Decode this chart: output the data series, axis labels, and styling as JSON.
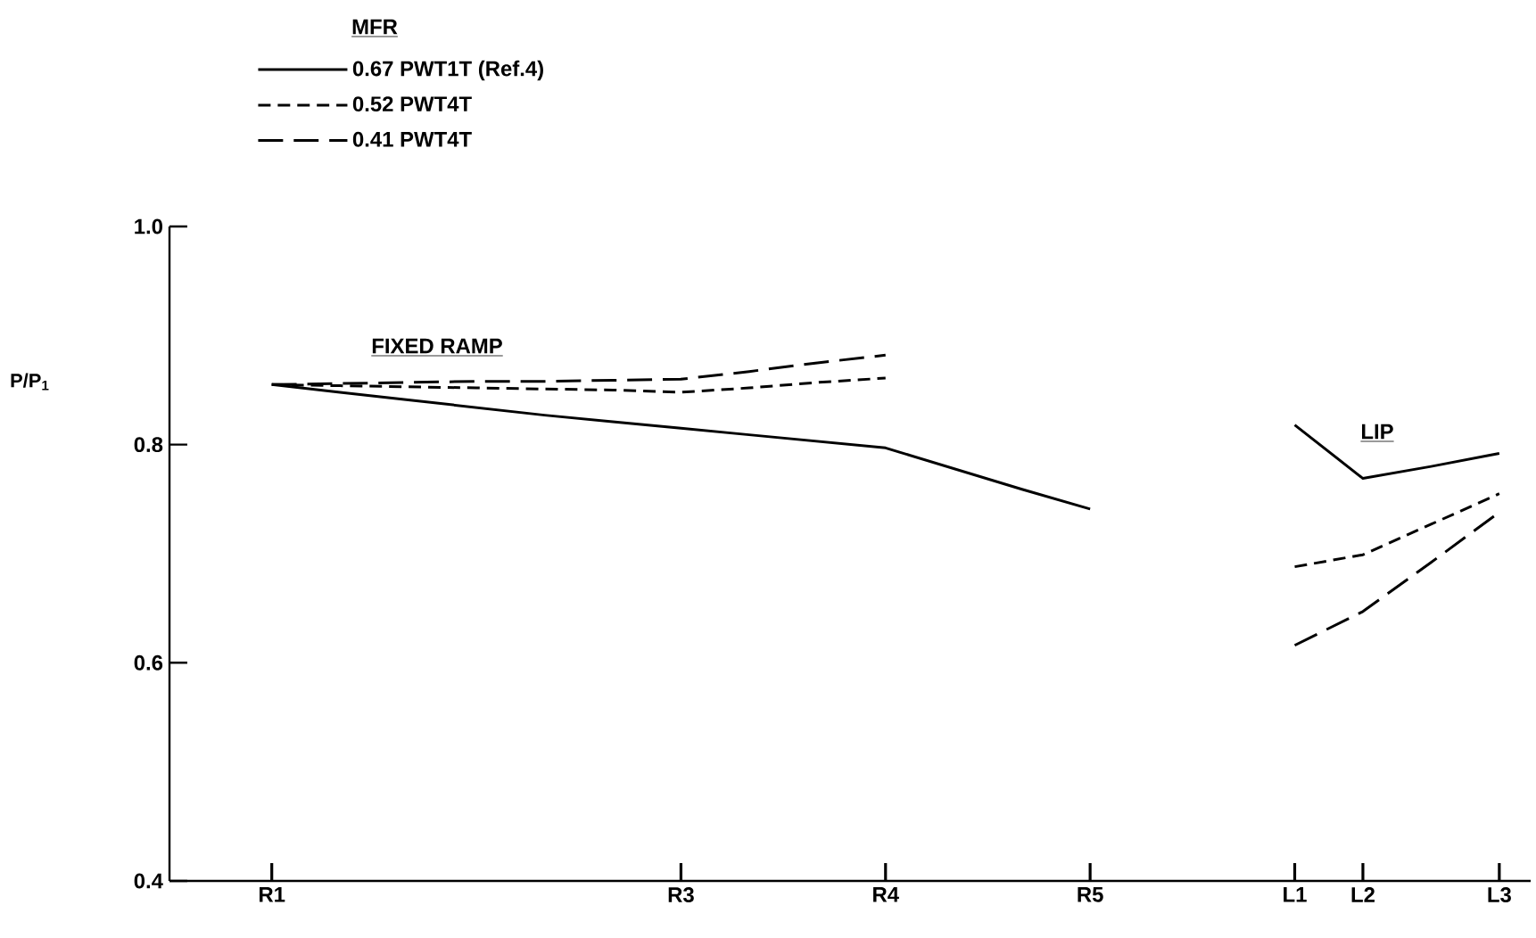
{
  "chart_data": {
    "type": "line",
    "ylabel": "P/P$_{1}$",
    "legend_title": "MFR",
    "categories": [
      "R1",
      null,
      null,
      null,
      null,
      null,
      "R3",
      null,
      null,
      "R4",
      null,
      null,
      "R5",
      null,
      null,
      "L1",
      "L2",
      null,
      "L3"
    ],
    "ylim": [
      0.4,
      1.0
    ],
    "yticks": [
      {
        "value": 0.4,
        "label": "0.4"
      },
      {
        "value": 0.6,
        "label": "0.6"
      },
      {
        "value": 0.8,
        "label": "0.8"
      },
      {
        "value": 1.0,
        "label": "1.0"
      }
    ],
    "series": [
      {
        "name": "0.67 PWT1T (Ref.4)",
        "color": "#000000",
        "line_style": "solid",
        "values": [
          0.855,
          0.848,
          0.841,
          0.834,
          0.827,
          0.821,
          0.815,
          0.809,
          0.803,
          0.797,
          0.778,
          0.759,
          0.741,
          null,
          null,
          0.818,
          0.769,
          0.78,
          0.792
        ]
      },
      {
        "name": "0.52 PWT4T",
        "color": "#000000",
        "line_style": "dashed",
        "values": [
          0.855,
          0.854,
          0.853,
          0.852,
          0.851,
          0.85,
          0.848,
          0.852,
          0.857,
          0.861,
          null,
          null,
          null,
          null,
          null,
          0.688,
          0.699,
          0.727,
          0.755
        ]
      },
      {
        "name": "0.41 PWT4T",
        "color": "#000000",
        "line_style": "dashed",
        "values": [
          0.855,
          0.856,
          0.857,
          0.858,
          0.858,
          0.859,
          0.86,
          0.867,
          0.875,
          0.882,
          null,
          null,
          null,
          null,
          null,
          0.616,
          0.647,
          0.692,
          0.738
        ]
      }
    ],
    "annotations": [
      "FIXED RAMP",
      "LIP"
    ],
    "legend": "top left",
    "marker": "none"
  }
}
